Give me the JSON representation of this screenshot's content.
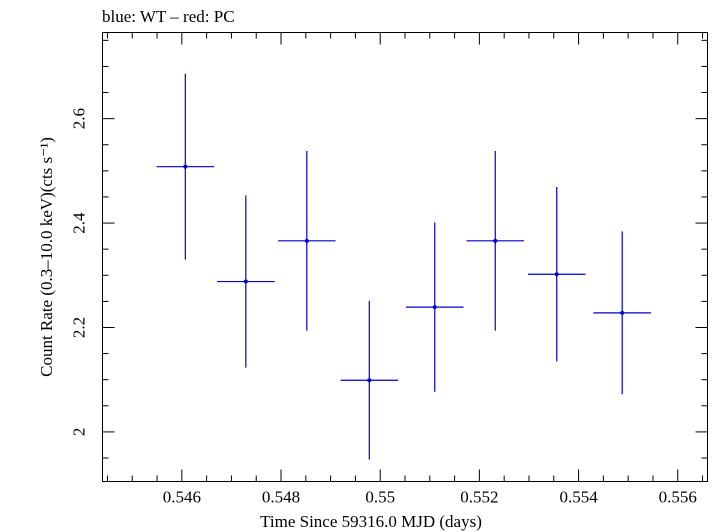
{
  "chart_data": {
    "type": "scatter",
    "title": "blue: WT – red: PC",
    "xlabel": "Time Since 59316.0 MJD (days)",
    "ylabel": "Count Rate (0.3–10.0 keV)(cts s⁻¹)",
    "xlim": [
      0.5444,
      0.5566
    ],
    "ylim": [
      1.905,
      2.765
    ],
    "x_ticks": [
      0.546,
      0.548,
      0.55,
      0.552,
      0.554,
      0.556
    ],
    "x_tick_labels": [
      "0.546",
      "0.548",
      "0.55",
      "0.552",
      "0.554",
      "0.556"
    ],
    "y_ticks": [
      2.0,
      2.2,
      2.4,
      2.6
    ],
    "y_tick_labels": [
      "2",
      "2.2",
      "2.4",
      "2.6"
    ],
    "grid": false,
    "series": [
      {
        "name": "WT",
        "color": "#0000cc",
        "points": [
          {
            "x": 0.54607,
            "y": 2.508,
            "xerr": 0.00058,
            "yerr": 0.178
          },
          {
            "x": 0.54729,
            "y": 2.288,
            "xerr": 0.00058,
            "yerr": 0.165
          },
          {
            "x": 0.54852,
            "y": 2.366,
            "xerr": 0.00058,
            "yerr": 0.172
          },
          {
            "x": 0.54978,
            "y": 2.099,
            "xerr": 0.00058,
            "yerr": 0.152
          },
          {
            "x": 0.5511,
            "y": 2.239,
            "xerr": 0.00058,
            "yerr": 0.162
          },
          {
            "x": 0.55232,
            "y": 2.366,
            "xerr": 0.00058,
            "yerr": 0.172
          },
          {
            "x": 0.55356,
            "y": 2.302,
            "xerr": 0.00058,
            "yerr": 0.167
          },
          {
            "x": 0.55488,
            "y": 2.228,
            "xerr": 0.00058,
            "yerr": 0.156
          }
        ]
      }
    ]
  }
}
